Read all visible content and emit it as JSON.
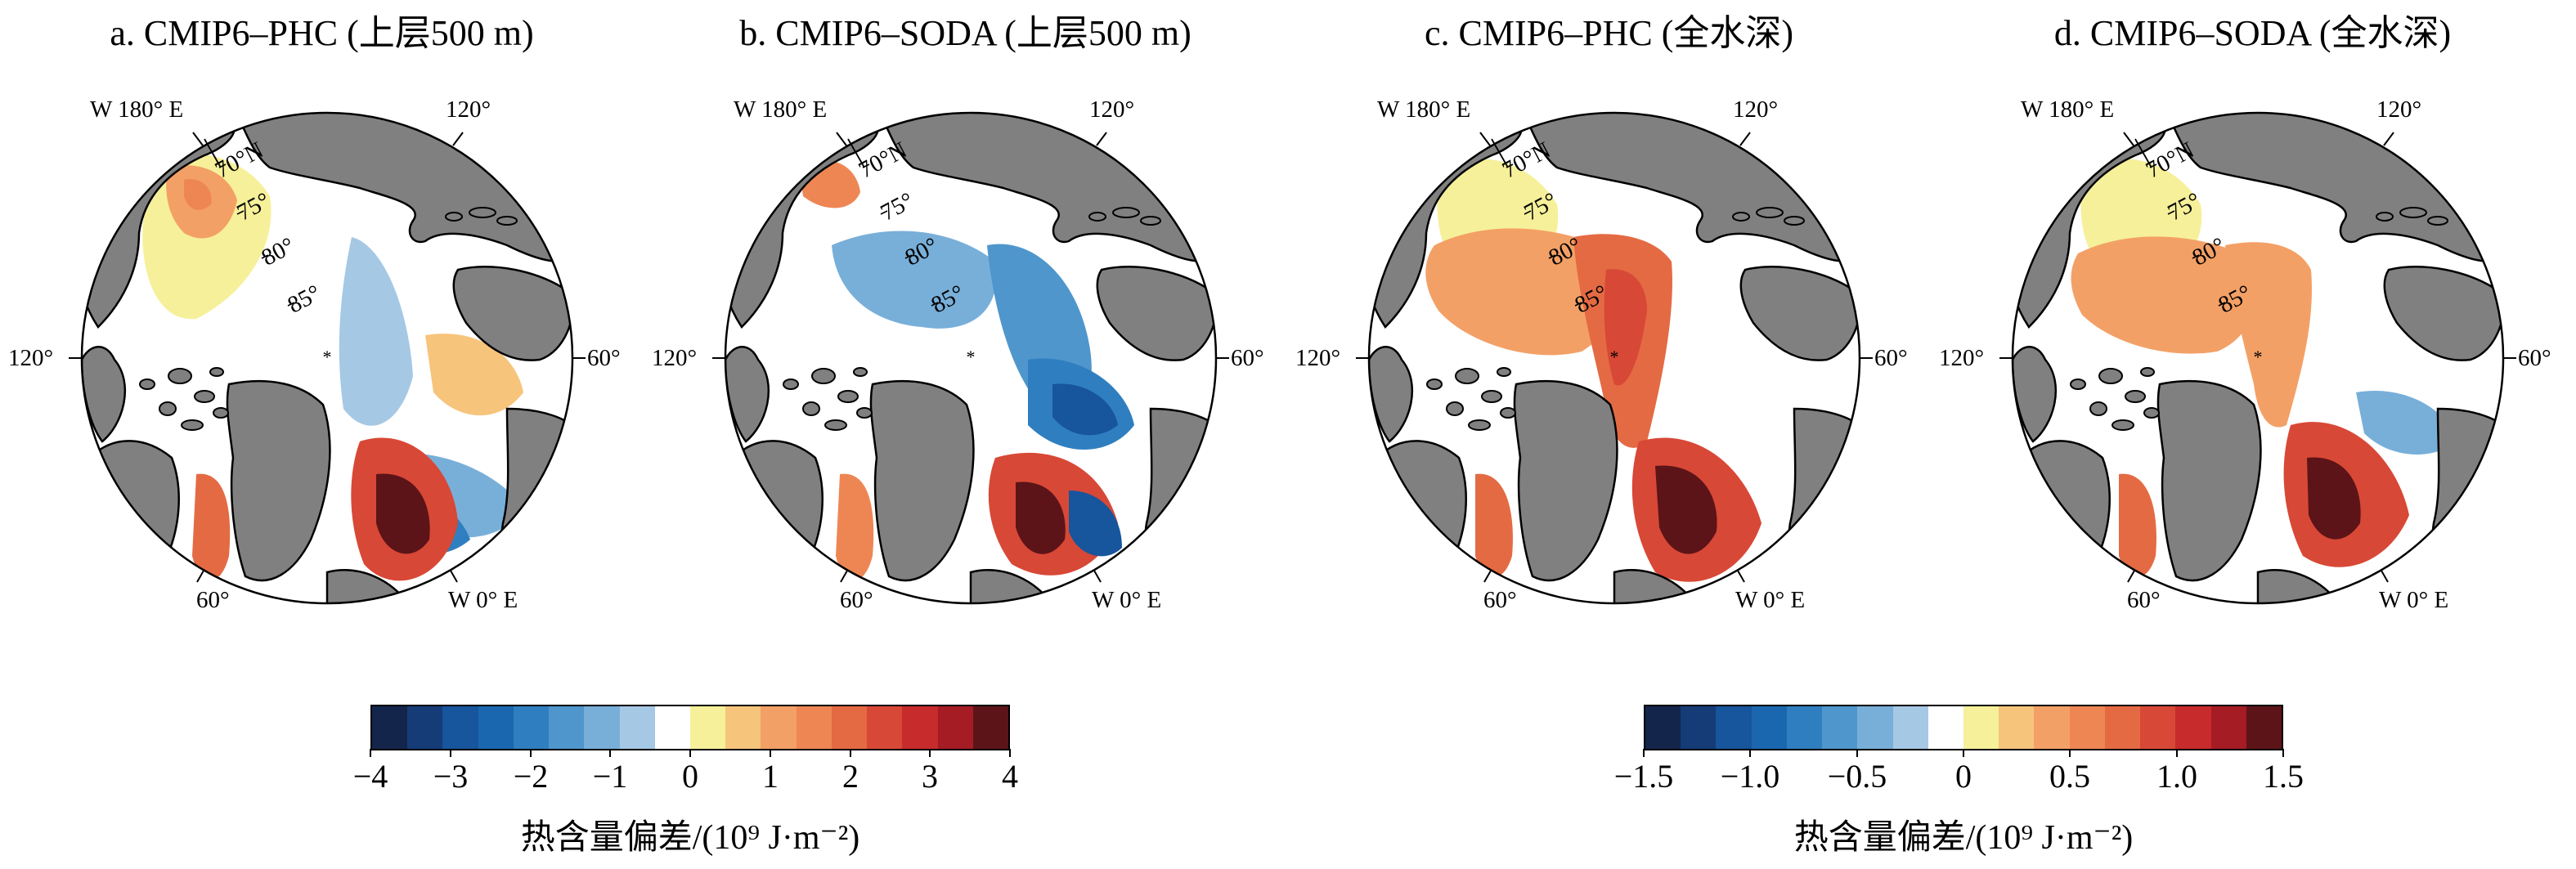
{
  "panels": [
    {
      "title": "a. CMIP6–PHC (上层500 m)"
    },
    {
      "title": "b. CMIP6–SODA (上层500 m)"
    },
    {
      "title": "c. CMIP6–PHC (全水深)"
    },
    {
      "title": "d. CMIP6–SODA (全水深)"
    }
  ],
  "map_labels": {
    "top_left_meridian": "W 180° E",
    "top_right_meridian": "120°",
    "left_meridian": "120°",
    "right_meridian": "60°",
    "bottom_left_meridian": "60°",
    "bottom_right_meridian": "W 0° E",
    "lat_70": "70°N",
    "lat_75": "75°",
    "lat_80": "80°",
    "lat_85": "85°"
  },
  "colorbars": [
    {
      "ticks": [
        "−4",
        "−3",
        "−2",
        "−1",
        "0",
        "1",
        "2",
        "3",
        "4"
      ],
      "title": "热含量偏差/(10⁹ J·m⁻²)"
    },
    {
      "ticks": [
        "−1.5",
        "−1.0",
        "−0.5",
        "0",
        "0.5",
        "1.0",
        "1.5"
      ],
      "title": "热含量偏差/(10⁹ J·m⁻²)"
    }
  ],
  "colors": {
    "palette": [
      "#13254b",
      "#163c78",
      "#17559d",
      "#1a67b0",
      "#2f7fc0",
      "#4f96cc",
      "#78afd9",
      "#a5c8e4",
      "#ffffff",
      "#f6f09a",
      "#f7c47c",
      "#f3a066",
      "#ee8654",
      "#e46a43",
      "#d84836",
      "#c72b2c",
      "#a51c24",
      "#5c1418"
    ],
    "land": "#808080",
    "ocean_background": "#ffffff"
  }
}
